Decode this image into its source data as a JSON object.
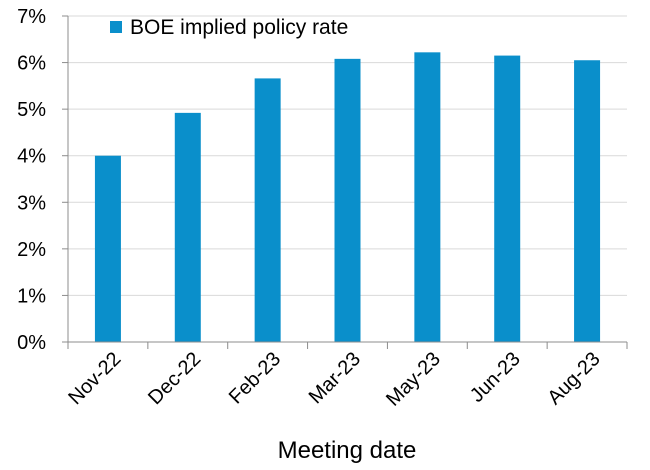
{
  "chart_data": {
    "type": "bar",
    "title": "",
    "xlabel": "Meeting date",
    "ylabel": "",
    "categories": [
      "Nov-22",
      "Dec-22",
      "Feb-23",
      "Mar-23",
      "May-23",
      "Jun-23",
      "Aug-23"
    ],
    "series": [
      {
        "name": "BOE implied policy rate",
        "values": [
          4.0,
          4.92,
          5.66,
          6.08,
          6.22,
          6.15,
          6.05
        ]
      }
    ],
    "ylim": [
      0,
      7
    ],
    "yticks": [
      "0%",
      "1%",
      "2%",
      "3%",
      "4%",
      "5%",
      "6%",
      "7%"
    ],
    "grid": true,
    "legend_position": "top-left",
    "colors": {
      "bar": "#0a8fcb",
      "grid": "#d9d9d9",
      "axis": "#8c8c8c"
    }
  }
}
